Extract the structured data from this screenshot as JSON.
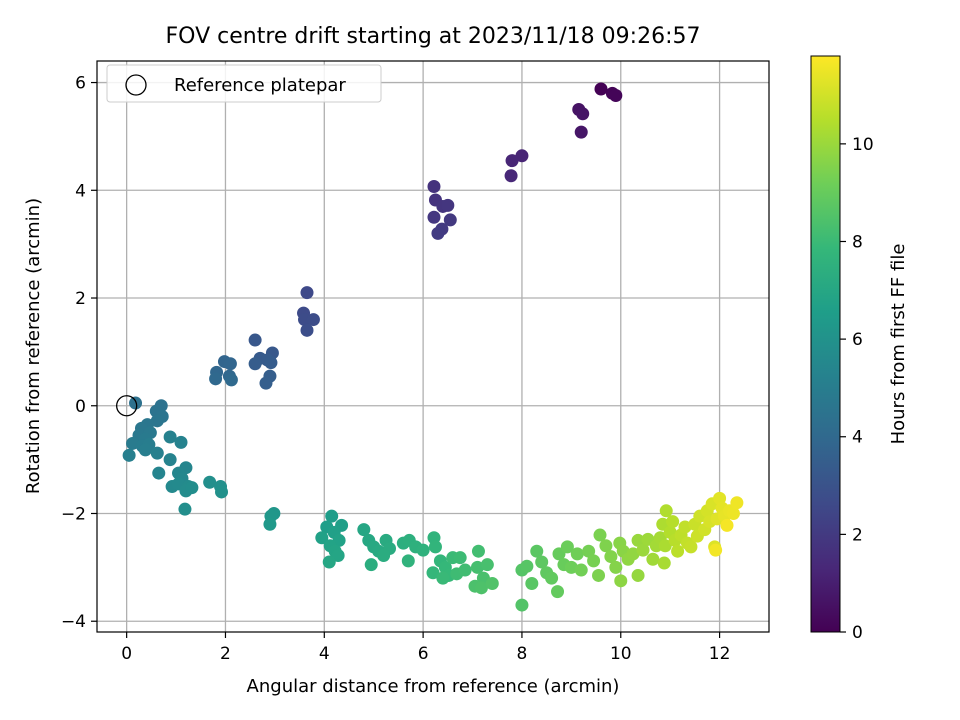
{
  "chart_data": {
    "type": "scatter",
    "title": "FOV centre drift starting at 2023/11/18 09:26:57",
    "xlabel": "Angular distance from reference (arcmin)",
    "ylabel": "Rotation from reference (arcmin)",
    "xlim": [
      -0.6,
      13.0
    ],
    "ylim": [
      -4.2,
      6.4
    ],
    "xticks": [
      "0",
      "2",
      "4",
      "6",
      "8",
      "10",
      "12"
    ],
    "yticks": [
      "−4",
      "−2",
      "0",
      "2",
      "4",
      "6"
    ],
    "grid": true,
    "legend": {
      "position": "top-left",
      "entries": [
        "Reference platepar"
      ]
    },
    "reference_point": {
      "x": 0,
      "y": 0
    },
    "colorbar": {
      "label": "Hours from first FF file",
      "range": [
        0,
        11.8
      ],
      "ticks": [
        "0",
        "2",
        "4",
        "6",
        "8",
        "10"
      ],
      "colormap": [
        "#440154",
        "#482878",
        "#3e4a89",
        "#31688e",
        "#26828e",
        "#1f9e89",
        "#35b779",
        "#6ece58",
        "#b5de2b",
        "#fde725"
      ]
    },
    "points": [
      {
        "x": 9.6,
        "y": 5.88,
        "h": 0.05
      },
      {
        "x": 9.83,
        "y": 5.8,
        "h": 0.1
      },
      {
        "x": 9.9,
        "y": 5.76,
        "h": 0.15
      },
      {
        "x": 9.15,
        "y": 5.5,
        "h": 0.6
      },
      {
        "x": 9.23,
        "y": 5.42,
        "h": 0.65
      },
      {
        "x": 9.2,
        "y": 5.08,
        "h": 0.7
      },
      {
        "x": 8.0,
        "y": 4.64,
        "h": 1.2
      },
      {
        "x": 7.8,
        "y": 4.55,
        "h": 1.25
      },
      {
        "x": 7.78,
        "y": 4.27,
        "h": 1.3
      },
      {
        "x": 6.22,
        "y": 4.07,
        "h": 1.7
      },
      {
        "x": 6.25,
        "y": 3.82,
        "h": 1.75
      },
      {
        "x": 6.4,
        "y": 3.7,
        "h": 1.8
      },
      {
        "x": 6.5,
        "y": 3.72,
        "h": 1.85
      },
      {
        "x": 6.22,
        "y": 3.5,
        "h": 1.9
      },
      {
        "x": 6.55,
        "y": 3.45,
        "h": 1.95
      },
      {
        "x": 6.38,
        "y": 3.28,
        "h": 2.0
      },
      {
        "x": 6.3,
        "y": 3.2,
        "h": 2.05
      },
      {
        "x": 3.65,
        "y": 2.1,
        "h": 2.6
      },
      {
        "x": 3.58,
        "y": 1.72,
        "h": 2.65
      },
      {
        "x": 3.6,
        "y": 1.6,
        "h": 2.7
      },
      {
        "x": 3.78,
        "y": 1.6,
        "h": 2.75
      },
      {
        "x": 3.65,
        "y": 1.4,
        "h": 2.8
      },
      {
        "x": 2.6,
        "y": 1.22,
        "h": 3.2
      },
      {
        "x": 2.95,
        "y": 0.98,
        "h": 3.25
      },
      {
        "x": 2.7,
        "y": 0.88,
        "h": 3.3
      },
      {
        "x": 2.85,
        "y": 0.85,
        "h": 3.35
      },
      {
        "x": 2.92,
        "y": 0.8,
        "h": 3.4
      },
      {
        "x": 2.6,
        "y": 0.78,
        "h": 3.45
      },
      {
        "x": 2.9,
        "y": 0.55,
        "h": 3.5
      },
      {
        "x": 2.82,
        "y": 0.42,
        "h": 3.55
      },
      {
        "x": 1.98,
        "y": 0.82,
        "h": 3.8
      },
      {
        "x": 2.1,
        "y": 0.78,
        "h": 3.85
      },
      {
        "x": 1.82,
        "y": 0.62,
        "h": 3.9
      },
      {
        "x": 2.08,
        "y": 0.55,
        "h": 3.95
      },
      {
        "x": 1.8,
        "y": 0.5,
        "h": 4.0
      },
      {
        "x": 2.12,
        "y": 0.48,
        "h": 4.05
      },
      {
        "x": 0.18,
        "y": 0.05,
        "h": 4.4
      },
      {
        "x": 0.7,
        "y": 0.0,
        "h": 4.45
      },
      {
        "x": 0.6,
        "y": -0.1,
        "h": 4.5
      },
      {
        "x": 0.72,
        "y": -0.2,
        "h": 4.55
      },
      {
        "x": 0.62,
        "y": -0.28,
        "h": 4.6
      },
      {
        "x": 0.42,
        "y": -0.35,
        "h": 4.65
      },
      {
        "x": 0.3,
        "y": -0.42,
        "h": 4.7
      },
      {
        "x": 0.25,
        "y": -0.55,
        "h": 4.75
      },
      {
        "x": 0.48,
        "y": -0.5,
        "h": 4.8
      },
      {
        "x": 0.38,
        "y": -0.62,
        "h": 4.85
      },
      {
        "x": 0.12,
        "y": -0.7,
        "h": 4.9
      },
      {
        "x": 0.32,
        "y": -0.75,
        "h": 4.95
      },
      {
        "x": 0.45,
        "y": -0.72,
        "h": 5.0
      },
      {
        "x": 0.38,
        "y": -0.82,
        "h": 5.05
      },
      {
        "x": 0.05,
        "y": -0.92,
        "h": 5.1
      },
      {
        "x": 0.62,
        "y": -0.88,
        "h": 5.15
      },
      {
        "x": 0.88,
        "y": -0.58,
        "h": 5.2
      },
      {
        "x": 1.1,
        "y": -0.68,
        "h": 5.25
      },
      {
        "x": 0.88,
        "y": -1.0,
        "h": 5.3
      },
      {
        "x": 0.65,
        "y": -1.25,
        "h": 5.35
      },
      {
        "x": 1.2,
        "y": -1.15,
        "h": 5.4
      },
      {
        "x": 1.05,
        "y": -1.25,
        "h": 5.45
      },
      {
        "x": 1.12,
        "y": -1.35,
        "h": 5.5
      },
      {
        "x": 0.92,
        "y": -1.5,
        "h": 5.55
      },
      {
        "x": 1.05,
        "y": -1.45,
        "h": 5.6
      },
      {
        "x": 1.25,
        "y": -1.5,
        "h": 5.65
      },
      {
        "x": 1.2,
        "y": -1.58,
        "h": 5.7
      },
      {
        "x": 1.32,
        "y": -1.52,
        "h": 5.75
      },
      {
        "x": 1.18,
        "y": -1.92,
        "h": 5.8
      },
      {
        "x": 1.68,
        "y": -1.42,
        "h": 5.85
      },
      {
        "x": 1.9,
        "y": -1.5,
        "h": 5.9
      },
      {
        "x": 1.92,
        "y": -1.6,
        "h": 5.95
      },
      {
        "x": 2.98,
        "y": -2.0,
        "h": 6.2
      },
      {
        "x": 2.92,
        "y": -2.05,
        "h": 6.25
      },
      {
        "x": 2.9,
        "y": -2.2,
        "h": 6.3
      },
      {
        "x": 4.15,
        "y": -2.05,
        "h": 6.5
      },
      {
        "x": 4.05,
        "y": -2.25,
        "h": 6.55
      },
      {
        "x": 4.35,
        "y": -2.22,
        "h": 6.6
      },
      {
        "x": 4.2,
        "y": -2.35,
        "h": 6.65
      },
      {
        "x": 3.95,
        "y": -2.45,
        "h": 6.7
      },
      {
        "x": 4.3,
        "y": -2.5,
        "h": 6.75
      },
      {
        "x": 4.12,
        "y": -2.6,
        "h": 6.8
      },
      {
        "x": 4.22,
        "y": -2.7,
        "h": 6.85
      },
      {
        "x": 4.28,
        "y": -2.78,
        "h": 6.9
      },
      {
        "x": 4.1,
        "y": -2.9,
        "h": 6.95
      },
      {
        "x": 4.8,
        "y": -2.3,
        "h": 7.0
      },
      {
        "x": 4.9,
        "y": -2.5,
        "h": 7.05
      },
      {
        "x": 5.0,
        "y": -2.62,
        "h": 7.1
      },
      {
        "x": 5.1,
        "y": -2.7,
        "h": 7.15
      },
      {
        "x": 5.25,
        "y": -2.5,
        "h": 7.2
      },
      {
        "x": 5.32,
        "y": -2.65,
        "h": 7.25
      },
      {
        "x": 5.2,
        "y": -2.78,
        "h": 7.3
      },
      {
        "x": 4.95,
        "y": -2.95,
        "h": 7.35
      },
      {
        "x": 5.6,
        "y": -2.55,
        "h": 7.4
      },
      {
        "x": 5.72,
        "y": -2.5,
        "h": 7.45
      },
      {
        "x": 5.85,
        "y": -2.62,
        "h": 7.5
      },
      {
        "x": 6.0,
        "y": -2.68,
        "h": 7.55
      },
      {
        "x": 5.7,
        "y": -2.88,
        "h": 7.6
      },
      {
        "x": 6.22,
        "y": -2.45,
        "h": 7.65
      },
      {
        "x": 6.25,
        "y": -2.62,
        "h": 7.7
      },
      {
        "x": 6.35,
        "y": -2.88,
        "h": 7.75
      },
      {
        "x": 6.2,
        "y": -3.1,
        "h": 7.8
      },
      {
        "x": 6.45,
        "y": -3.0,
        "h": 7.85
      },
      {
        "x": 6.52,
        "y": -3.15,
        "h": 7.9
      },
      {
        "x": 6.4,
        "y": -3.2,
        "h": 7.95
      },
      {
        "x": 6.6,
        "y": -2.82,
        "h": 8.0
      },
      {
        "x": 6.75,
        "y": -2.82,
        "h": 8.05
      },
      {
        "x": 6.68,
        "y": -3.12,
        "h": 8.1
      },
      {
        "x": 6.85,
        "y": -3.05,
        "h": 8.15
      },
      {
        "x": 7.12,
        "y": -2.7,
        "h": 8.2
      },
      {
        "x": 7.1,
        "y": -3.0,
        "h": 8.25
      },
      {
        "x": 7.3,
        "y": -2.95,
        "h": 8.3
      },
      {
        "x": 7.22,
        "y": -3.2,
        "h": 8.35
      },
      {
        "x": 7.05,
        "y": -3.35,
        "h": 8.4
      },
      {
        "x": 7.18,
        "y": -3.38,
        "h": 8.45
      },
      {
        "x": 7.4,
        "y": -3.3,
        "h": 8.5
      },
      {
        "x": 8.0,
        "y": -3.7,
        "h": 8.55
      },
      {
        "x": 8.0,
        "y": -3.05,
        "h": 8.6
      },
      {
        "x": 8.1,
        "y": -2.98,
        "h": 8.65
      },
      {
        "x": 8.2,
        "y": -3.3,
        "h": 8.7
      },
      {
        "x": 8.3,
        "y": -2.7,
        "h": 8.75
      },
      {
        "x": 8.4,
        "y": -2.9,
        "h": 8.8
      },
      {
        "x": 8.5,
        "y": -3.1,
        "h": 8.85
      },
      {
        "x": 8.6,
        "y": -3.2,
        "h": 8.9
      },
      {
        "x": 8.72,
        "y": -3.45,
        "h": 8.95
      },
      {
        "x": 8.75,
        "y": -2.75,
        "h": 9.0
      },
      {
        "x": 8.85,
        "y": -2.95,
        "h": 9.05
      },
      {
        "x": 8.92,
        "y": -2.62,
        "h": 9.1
      },
      {
        "x": 9.0,
        "y": -3.0,
        "h": 9.15
      },
      {
        "x": 9.12,
        "y": -2.75,
        "h": 9.2
      },
      {
        "x": 9.2,
        "y": -3.05,
        "h": 9.25
      },
      {
        "x": 9.35,
        "y": -2.7,
        "h": 9.3
      },
      {
        "x": 9.45,
        "y": -2.88,
        "h": 9.35
      },
      {
        "x": 9.58,
        "y": -2.4,
        "h": 9.4
      },
      {
        "x": 9.55,
        "y": -3.15,
        "h": 9.45
      },
      {
        "x": 9.7,
        "y": -2.6,
        "h": 9.5
      },
      {
        "x": 9.8,
        "y": -2.8,
        "h": 9.55
      },
      {
        "x": 9.9,
        "y": -3.0,
        "h": 9.6
      },
      {
        "x": 9.98,
        "y": -2.55,
        "h": 9.65
      },
      {
        "x": 10.05,
        "y": -2.7,
        "h": 9.7
      },
      {
        "x": 10.0,
        "y": -3.25,
        "h": 9.75
      },
      {
        "x": 10.15,
        "y": -2.85,
        "h": 9.8
      },
      {
        "x": 10.25,
        "y": -2.75,
        "h": 9.85
      },
      {
        "x": 10.35,
        "y": -3.15,
        "h": 9.9
      },
      {
        "x": 10.35,
        "y": -2.5,
        "h": 9.95
      },
      {
        "x": 10.45,
        "y": -2.68,
        "h": 10.0
      },
      {
        "x": 10.55,
        "y": -2.48,
        "h": 10.05
      },
      {
        "x": 10.65,
        "y": -2.85,
        "h": 10.1
      },
      {
        "x": 10.72,
        "y": -2.6,
        "h": 10.15
      },
      {
        "x": 10.8,
        "y": -2.45,
        "h": 10.2
      },
      {
        "x": 10.88,
        "y": -2.92,
        "h": 10.25
      },
      {
        "x": 10.9,
        "y": -2.6,
        "h": 10.3
      },
      {
        "x": 10.85,
        "y": -2.2,
        "h": 10.35
      },
      {
        "x": 10.92,
        "y": -1.95,
        "h": 10.4
      },
      {
        "x": 11.0,
        "y": -2.35,
        "h": 10.45
      },
      {
        "x": 11.05,
        "y": -2.15,
        "h": 10.5
      },
      {
        "x": 11.1,
        "y": -2.5,
        "h": 10.55
      },
      {
        "x": 11.15,
        "y": -2.7,
        "h": 10.6
      },
      {
        "x": 11.22,
        "y": -2.4,
        "h": 10.65
      },
      {
        "x": 11.3,
        "y": -2.25,
        "h": 10.7
      },
      {
        "x": 11.35,
        "y": -2.55,
        "h": 10.75
      },
      {
        "x": 11.42,
        "y": -2.62,
        "h": 10.8
      },
      {
        "x": 11.5,
        "y": -2.2,
        "h": 10.85
      },
      {
        "x": 11.55,
        "y": -2.42,
        "h": 10.9
      },
      {
        "x": 11.6,
        "y": -2.05,
        "h": 10.95
      },
      {
        "x": 11.7,
        "y": -2.3,
        "h": 11.0
      },
      {
        "x": 11.75,
        "y": -1.95,
        "h": 11.05
      },
      {
        "x": 11.8,
        "y": -2.15,
        "h": 11.1
      },
      {
        "x": 11.85,
        "y": -1.82,
        "h": 11.15
      },
      {
        "x": 11.9,
        "y": -2.62,
        "h": 11.2
      },
      {
        "x": 11.95,
        "y": -2.1,
        "h": 11.25
      },
      {
        "x": 12.0,
        "y": -1.72,
        "h": 11.3
      },
      {
        "x": 12.05,
        "y": -1.9,
        "h": 11.35
      },
      {
        "x": 12.1,
        "y": -2.05,
        "h": 11.4
      },
      {
        "x": 12.2,
        "y": -1.95,
        "h": 11.45
      },
      {
        "x": 12.28,
        "y": -2.0,
        "h": 11.5
      },
      {
        "x": 12.35,
        "y": -1.8,
        "h": 11.55
      },
      {
        "x": 11.92,
        "y": -2.68,
        "h": 11.6
      },
      {
        "x": 12.15,
        "y": -2.22,
        "h": 11.65
      }
    ]
  }
}
